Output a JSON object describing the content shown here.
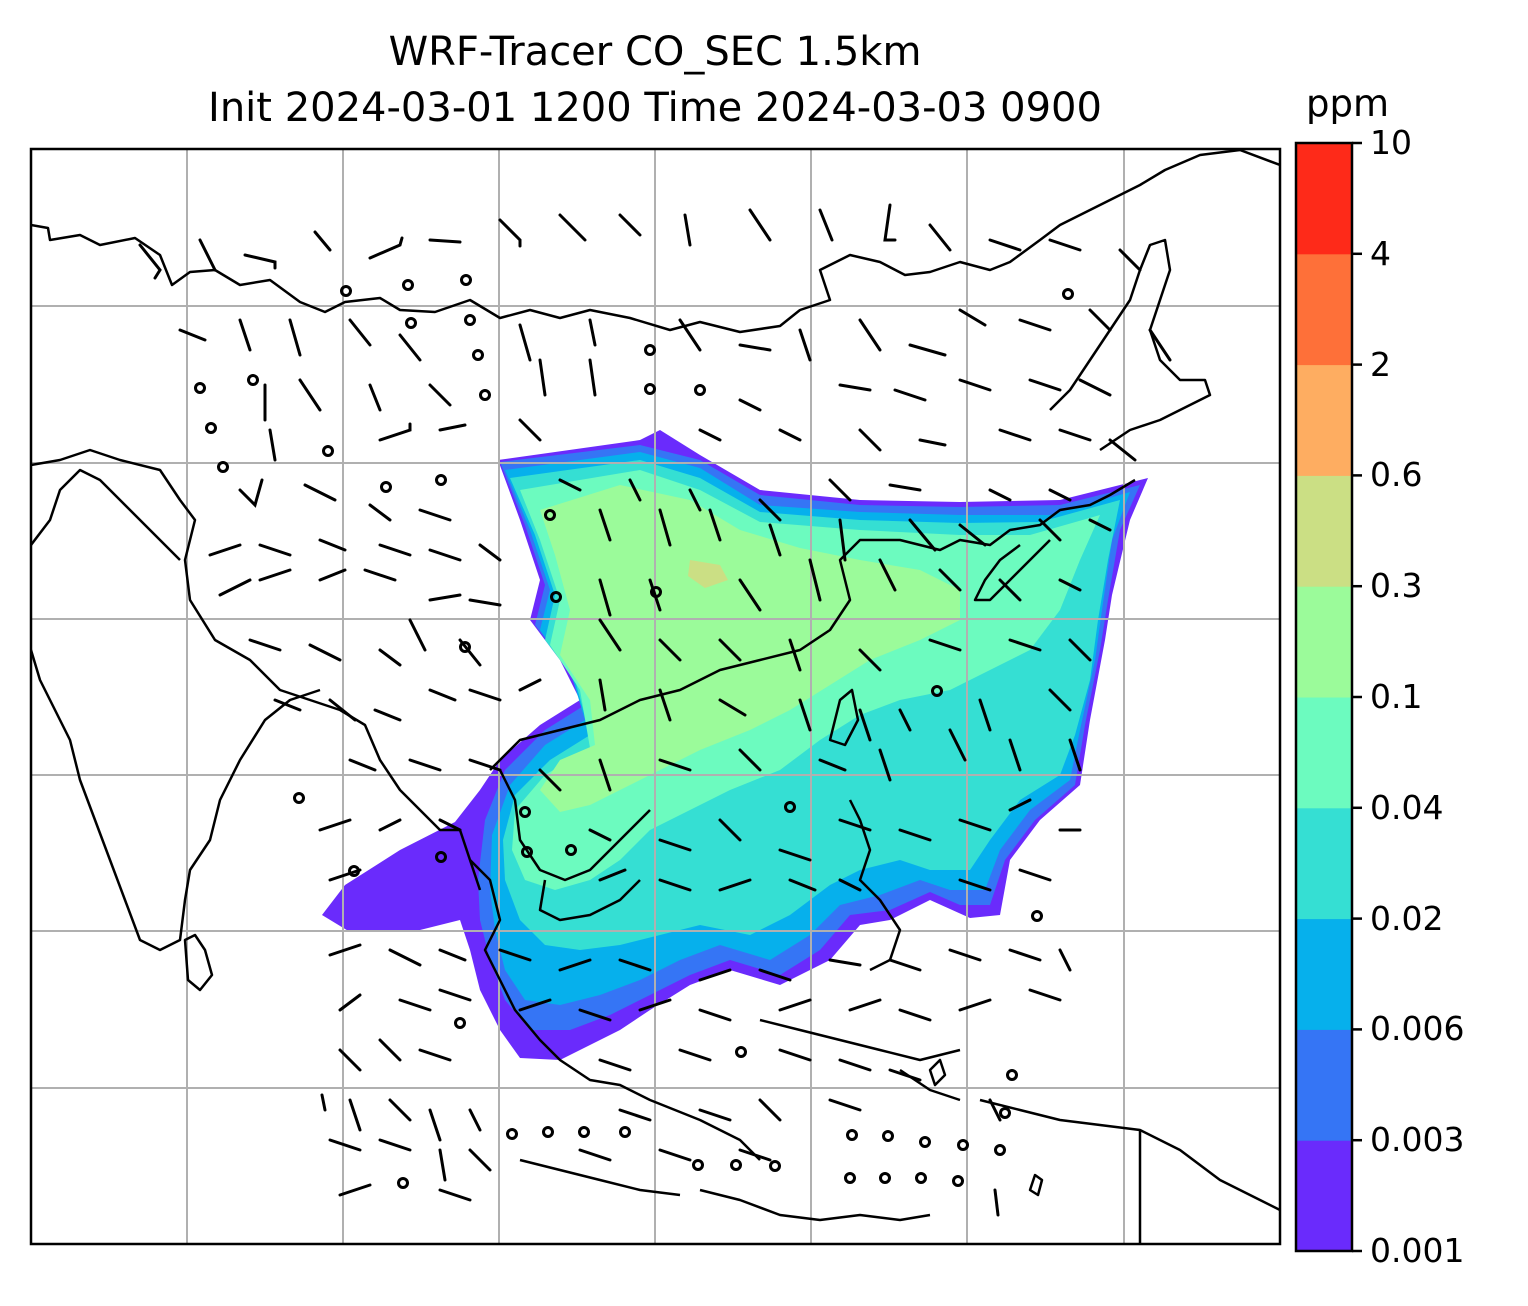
{
  "title": {
    "line1": "WRF-Tracer CO_SEC 1.5km",
    "line2": "Init 2024-03-01 1200 Time 2024-03-03 0900"
  },
  "colorbar": {
    "unit": "ppm",
    "ticks": [
      "0.001",
      "0.003",
      "0.006",
      "0.02",
      "0.04",
      "0.1",
      "0.3",
      "0.6",
      "2",
      "4",
      "10"
    ],
    "colors": [
      "#6a2bfc",
      "#3575f5",
      "#06b0ec",
      "#35dfd3",
      "#6cfbbf",
      "#9bfb9a",
      "#cbdf84",
      "#fead61",
      "#fe7039",
      "#fe2a19"
    ]
  }
}
